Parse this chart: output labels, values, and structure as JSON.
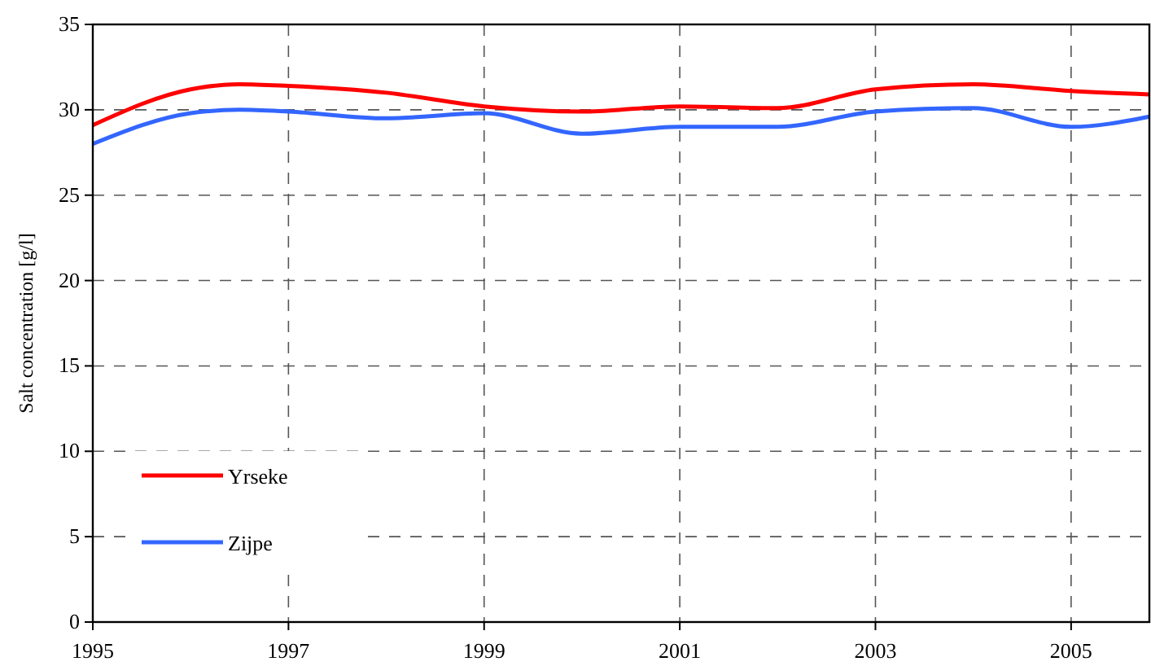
{
  "chart_data": {
    "type": "line",
    "ylabel": "Salt concentration [g/l]",
    "x": [
      1995,
      1996,
      1996.5,
      1997,
      1998,
      1999,
      2000,
      2001,
      2002,
      2003,
      2004,
      2005,
      2005.8
    ],
    "series": [
      {
        "name": "Yrseke",
        "color": "#ff0000",
        "values": [
          29.1,
          31.2,
          31.5,
          31.4,
          31.0,
          30.2,
          29.9,
          30.2,
          30.1,
          31.2,
          31.5,
          31.1,
          30.9
        ]
      },
      {
        "name": "Zijpe",
        "color": "#3366ff",
        "values": [
          28.0,
          29.8,
          30.0,
          29.9,
          29.5,
          29.8,
          28.6,
          29.0,
          29.0,
          29.9,
          30.1,
          29.0,
          29.6
        ]
      }
    ],
    "xlim": [
      1995,
      2005.8
    ],
    "xticks": [
      1995,
      1997,
      1999,
      2001,
      2003,
      2005
    ],
    "ylim": [
      0,
      35
    ],
    "yticks": [
      0,
      5,
      10,
      15,
      20,
      25,
      30,
      35
    ],
    "grid": true,
    "legend": "bottom left",
    "marker": "none",
    "line_style": "solid"
  }
}
